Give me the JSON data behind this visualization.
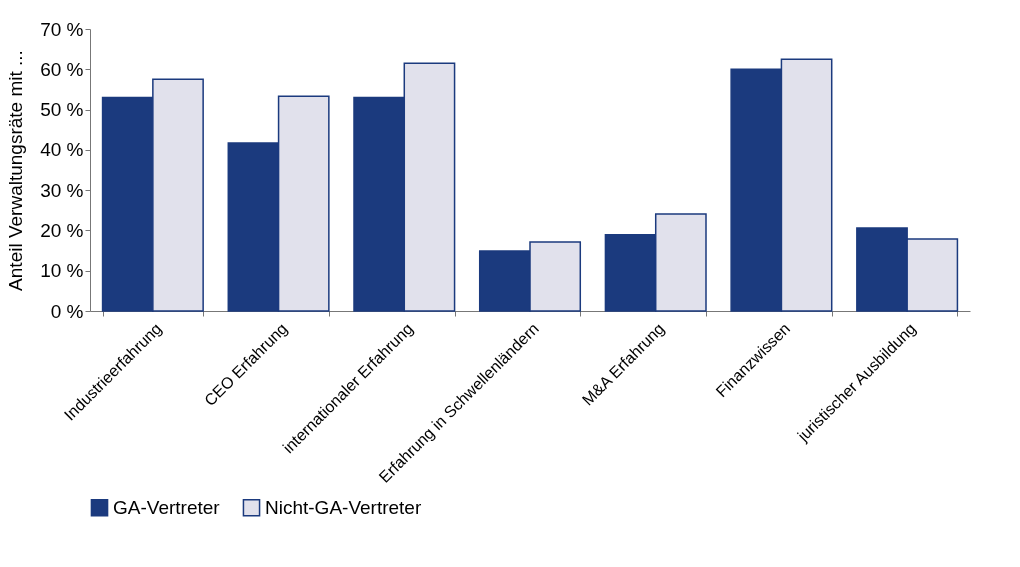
{
  "chart_data": {
    "type": "bar",
    "ylabel": "Anteil Verwaltungsräte mit ...",
    "categories": [
      "Industrieerfahrung",
      "CEO Erfahrung",
      "internationaler Erfahrung",
      "Erfahrung in Schwellenländern",
      "M&A Erfahrung",
      "Finanzwissen",
      "juristischer Ausbildung"
    ],
    "series": [
      {
        "name": "GA-Vertreter",
        "color": "#1b3a7e",
        "values": [
          53,
          41.7,
          53,
          14.9,
          18.9,
          60,
          20.6
        ]
      },
      {
        "name": "Nicht-GA-Vertreter",
        "color": "#e1e1ec",
        "values": [
          57.5,
          53.3,
          61.5,
          17.1,
          24.1,
          62.5,
          17.9
        ]
      }
    ],
    "ylim": [
      0,
      70
    ],
    "yticks": [
      {
        "value": 0,
        "label": "0 %"
      },
      {
        "value": 10,
        "label": "10 %"
      },
      {
        "value": 20,
        "label": "20 %"
      },
      {
        "value": 30,
        "label": "30 %"
      },
      {
        "value": 40,
        "label": "40 %"
      },
      {
        "value": 50,
        "label": "50 %"
      },
      {
        "value": 60,
        "label": "60 %"
      },
      {
        "value": 70,
        "label": "70 %"
      }
    ],
    "grid": false,
    "legend": "bottom"
  }
}
